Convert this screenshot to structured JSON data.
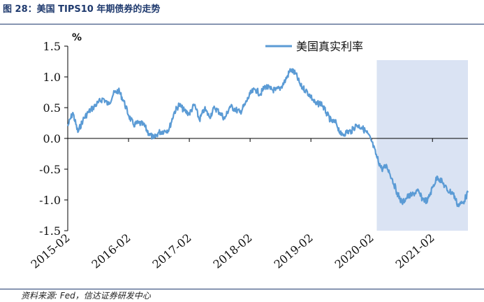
{
  "figure": {
    "title": "图 28：美国 TIPS10 年期债券的走势",
    "source": "资料来源: Fed，信达证券研发中心"
  },
  "chart_data": {
    "type": "line",
    "title": "",
    "xlabel": "",
    "ylabel": "",
    "unit_label": "%",
    "ylim": [
      -1.5,
      1.5
    ],
    "yticks": [
      -1.5,
      -1.0,
      -0.5,
      0.0,
      0.5,
      1.0,
      1.5
    ],
    "ytick_labels": [
      "-1.5",
      "-1.0",
      "-0.5",
      "0.0",
      "0.5",
      "1.0",
      "1.5"
    ],
    "x_start": "2015-02",
    "x_end": "2021-09",
    "xtick_labels": [
      "2015-02",
      "2016-02",
      "2017-02",
      "2018-02",
      "2019-02",
      "2020-02",
      "2021-02"
    ],
    "grid": false,
    "legend": "top-right",
    "line_color": "#5b9bd5",
    "shade_color": "#dae3f3",
    "shaded_period": [
      "2020-03",
      "2021-09"
    ],
    "series": [
      {
        "name": "美国真实利率",
        "points": [
          [
            "2015-02",
            0.2
          ],
          [
            "2015-03",
            0.42
          ],
          [
            "2015-04",
            0.1
          ],
          [
            "2015-05",
            0.3
          ],
          [
            "2015-06",
            0.42
          ],
          [
            "2015-07",
            0.5
          ],
          [
            "2015-08",
            0.58
          ],
          [
            "2015-09",
            0.65
          ],
          [
            "2015-10",
            0.55
          ],
          [
            "2015-11",
            0.72
          ],
          [
            "2015-12",
            0.78
          ],
          [
            "2016-01",
            0.62
          ],
          [
            "2016-02",
            0.38
          ],
          [
            "2016-03",
            0.22
          ],
          [
            "2016-04",
            0.25
          ],
          [
            "2016-05",
            0.22
          ],
          [
            "2016-06",
            0.08
          ],
          [
            "2016-07",
            0.0
          ],
          [
            "2016-08",
            0.1
          ],
          [
            "2016-09",
            0.12
          ],
          [
            "2016-10",
            0.15
          ],
          [
            "2016-11",
            0.42
          ],
          [
            "2016-12",
            0.55
          ],
          [
            "2017-01",
            0.45
          ],
          [
            "2017-02",
            0.4
          ],
          [
            "2017-03",
            0.55
          ],
          [
            "2017-04",
            0.3
          ],
          [
            "2017-05",
            0.48
          ],
          [
            "2017-06",
            0.35
          ],
          [
            "2017-07",
            0.5
          ],
          [
            "2017-08",
            0.42
          ],
          [
            "2017-09",
            0.32
          ],
          [
            "2017-10",
            0.52
          ],
          [
            "2017-11",
            0.48
          ],
          [
            "2017-12",
            0.42
          ],
          [
            "2018-01",
            0.55
          ],
          [
            "2018-02",
            0.72
          ],
          [
            "2018-03",
            0.8
          ],
          [
            "2018-04",
            0.72
          ],
          [
            "2018-05",
            0.85
          ],
          [
            "2018-06",
            0.8
          ],
          [
            "2018-07",
            0.78
          ],
          [
            "2018-08",
            0.82
          ],
          [
            "2018-09",
            0.95
          ],
          [
            "2018-10",
            1.12
          ],
          [
            "2018-11",
            1.05
          ],
          [
            "2018-12",
            0.85
          ],
          [
            "2019-01",
            0.78
          ],
          [
            "2019-02",
            0.68
          ],
          [
            "2019-03",
            0.55
          ],
          [
            "2019-04",
            0.58
          ],
          [
            "2019-05",
            0.42
          ],
          [
            "2019-06",
            0.28
          ],
          [
            "2019-07",
            0.25
          ],
          [
            "2019-08",
            0.05
          ],
          [
            "2019-09",
            0.1
          ],
          [
            "2019-10",
            0.12
          ],
          [
            "2019-11",
            0.22
          ],
          [
            "2019-12",
            0.18
          ],
          [
            "2020-01",
            0.1
          ],
          [
            "2020-02",
            -0.05
          ],
          [
            "2020-03",
            -0.3
          ],
          [
            "2020-04",
            -0.5
          ],
          [
            "2020-05",
            -0.45
          ],
          [
            "2020-06",
            -0.65
          ],
          [
            "2020-07",
            -0.88
          ],
          [
            "2020-08",
            -1.05
          ],
          [
            "2020-09",
            -0.95
          ],
          [
            "2020-10",
            -0.92
          ],
          [
            "2020-11",
            -0.85
          ],
          [
            "2020-12",
            -0.98
          ],
          [
            "2021-01",
            -1.02
          ],
          [
            "2021-02",
            -0.8
          ],
          [
            "2021-03",
            -0.62
          ],
          [
            "2021-04",
            -0.72
          ],
          [
            "2021-05",
            -0.85
          ],
          [
            "2021-06",
            -0.88
          ],
          [
            "2021-07",
            -1.08
          ],
          [
            "2021-08",
            -1.05
          ],
          [
            "2021-09",
            -0.88
          ]
        ]
      }
    ]
  }
}
